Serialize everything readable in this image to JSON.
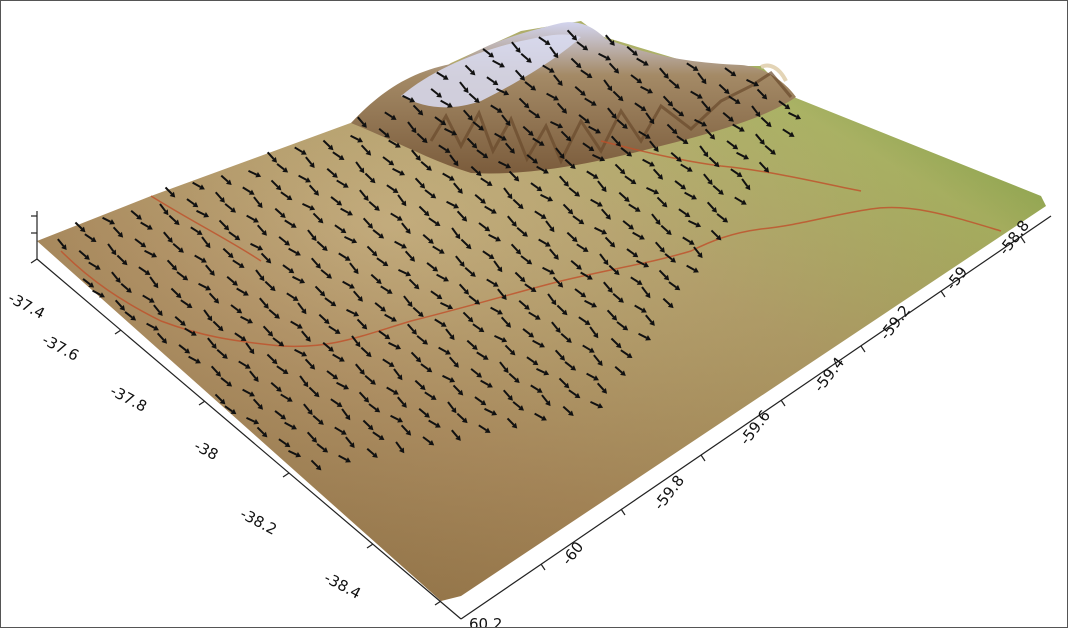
{
  "map": {
    "type": "3d-terrain-surface-with-vector-arrows",
    "colors": {
      "low_terrain": "#9a7446",
      "mid_terrain": "#b89a5e",
      "plain_green": "#a6c15a",
      "high_green": "#6fae3c",
      "peak": "#c9cde6",
      "stream": "#c0502a",
      "arrow": "#111111",
      "axis": "#222222"
    },
    "axes": {
      "latitude_ticks": [
        "-37.4",
        "-37.6",
        "-37.8",
        "-38",
        "-38.2",
        "-38.4"
      ],
      "longitude_ticks": [
        "-60",
        "-59.8",
        "-59.6",
        "-59.4",
        "-59.2",
        "-59",
        "-58.8"
      ],
      "z_label_fragment": "60.2"
    }
  }
}
